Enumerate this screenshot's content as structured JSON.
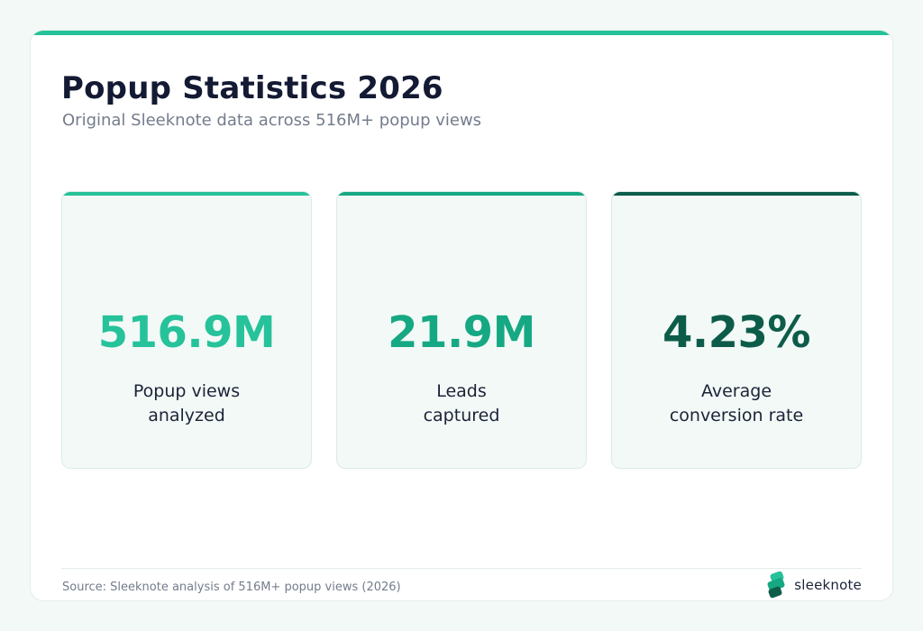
{
  "header": {
    "title": "Popup Statistics 2026",
    "subtitle": "Original Sleeknote data across 516M+ popup views"
  },
  "stats": [
    {
      "value": "516.9M",
      "label_line1": "Popup views",
      "label_line2": "analyzed",
      "color": "#26c29a",
      "bar_color": "#26c29a"
    },
    {
      "value": "21.9M",
      "label_line1": "Leads",
      "label_line2": "captured",
      "color": "#16a883",
      "bar_color": "#16a883"
    },
    {
      "value": "4.23%",
      "label_line1": "Average",
      "label_line2": "conversion rate",
      "color": "#0d5c4a",
      "bar_color": "#0d5c4a"
    }
  ],
  "footer": {
    "source": "Source: Sleeknote analysis of 516M+ popup views (2026)",
    "logo_text": "sleeknote",
    "logo_icon": "sleeknote-logo-icon"
  },
  "colors": {
    "accent": "#26c29a",
    "title": "#141a33",
    "muted": "#747c8c"
  }
}
